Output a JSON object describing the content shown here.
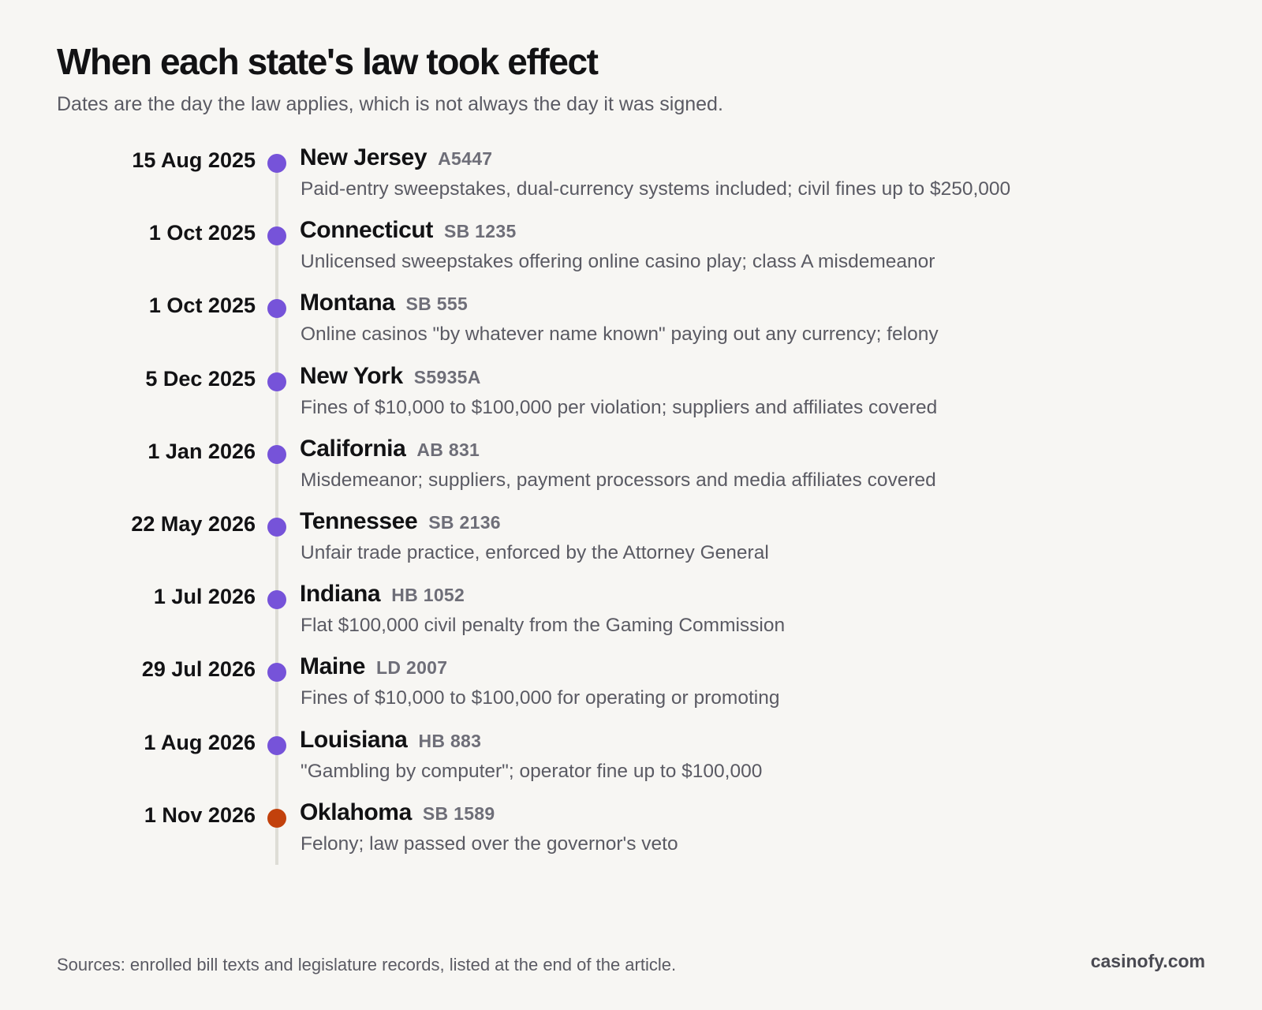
{
  "title": "When each state's law took effect",
  "subtitle": "Dates are the day the law applies, which is not always the day it was signed.",
  "colors": {
    "background": "#f7f6f3",
    "dot": "#7653d9",
    "dot_highlight": "#c2410c",
    "line": "#deddd6",
    "text_primary": "#121214",
    "text_secondary": "#5a5a63",
    "bill_text": "#6e6e78"
  },
  "entries": [
    {
      "date": "15 Aug 2025",
      "state": "New Jersey",
      "bill": "A5447",
      "description": "Paid-entry sweepstakes, dual-currency systems included; civil fines up to $250,000",
      "highlight": false
    },
    {
      "date": "1 Oct 2025",
      "state": "Connecticut",
      "bill": "SB 1235",
      "description": "Unlicensed sweepstakes offering online casino play; class A misdemeanor",
      "highlight": false
    },
    {
      "date": "1 Oct 2025",
      "state": "Montana",
      "bill": "SB 555",
      "description": "Online casinos \"by whatever name known\" paying out any currency; felony",
      "highlight": false
    },
    {
      "date": "5 Dec 2025",
      "state": "New York",
      "bill": "S5935A",
      "description": "Fines of $10,000 to $100,000 per violation; suppliers and affiliates covered",
      "highlight": false
    },
    {
      "date": "1 Jan 2026",
      "state": "California",
      "bill": "AB 831",
      "description": "Misdemeanor; suppliers, payment processors and media affiliates covered",
      "highlight": false
    },
    {
      "date": "22 May 2026",
      "state": "Tennessee",
      "bill": "SB 2136",
      "description": "Unfair trade practice, enforced by the Attorney General",
      "highlight": false
    },
    {
      "date": "1 Jul 2026",
      "state": "Indiana",
      "bill": "HB 1052",
      "description": "Flat $100,000 civil penalty from the Gaming Commission",
      "highlight": false
    },
    {
      "date": "29 Jul 2026",
      "state": "Maine",
      "bill": "LD 2007",
      "description": "Fines of $10,000 to $100,000 for operating or promoting",
      "highlight": false
    },
    {
      "date": "1 Aug 2026",
      "state": "Louisiana",
      "bill": "HB 883",
      "description": "\"Gambling by computer\"; operator fine up to $100,000",
      "highlight": false
    },
    {
      "date": "1 Nov 2026",
      "state": "Oklahoma",
      "bill": "SB 1589",
      "description": "Felony; law passed over the governor's veto",
      "highlight": true
    }
  ],
  "footer": {
    "sources": "Sources: enrolled bill texts and legislature records, listed at the end of the article.",
    "brand": "casinofy.com"
  }
}
